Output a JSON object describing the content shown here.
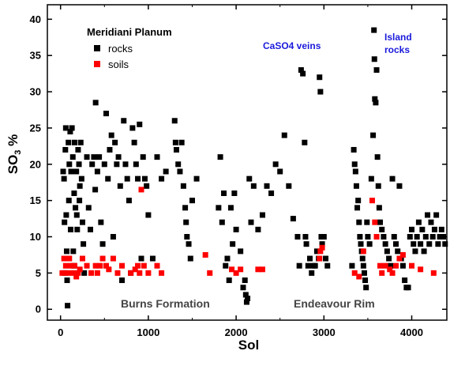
{
  "chart_data": {
    "type": "scatter",
    "title": "",
    "xlabel": "Sol",
    "ylabel_main": "SO",
    "ylabel_sub": "3",
    "ylabel_suffix": " %",
    "xlim": [
      -150,
      4400
    ],
    "ylim": [
      -1.5,
      42
    ],
    "xticks": [
      0,
      1000,
      2000,
      3000,
      4000
    ],
    "yticks": [
      0,
      5,
      10,
      15,
      20,
      25,
      30,
      35,
      40
    ],
    "grid": false,
    "legend": {
      "title": "Meridiani Planum",
      "placement": "top-left",
      "items": [
        {
          "label": "rocks",
          "color": "#000000"
        },
        {
          "label": "soils",
          "color": "#ff0000"
        }
      ]
    },
    "annotations": [
      {
        "text": "CaSO4 veins",
        "color": "#1a1adc"
      },
      {
        "text": "Island",
        "color": "#1a1adc"
      },
      {
        "text": "rocks",
        "color": "#1a1adc"
      },
      {
        "text": "Burns Formation",
        "color": "#444444"
      },
      {
        "text": "Endeavour Rim",
        "color": "#444444"
      }
    ],
    "series": [
      {
        "name": "rocks",
        "color": "#000000",
        "points": [
          [
            30,
            19
          ],
          [
            40,
            18
          ],
          [
            45,
            12
          ],
          [
            50,
            5
          ],
          [
            55,
            22
          ],
          [
            60,
            25
          ],
          [
            65,
            13
          ],
          [
            70,
            8
          ],
          [
            75,
            4
          ],
          [
            80,
            0.5
          ],
          [
            90,
            23
          ],
          [
            95,
            15
          ],
          [
            100,
            20
          ],
          [
            110,
            24.5
          ],
          [
            115,
            11
          ],
          [
            120,
            19
          ],
          [
            130,
            25
          ],
          [
            140,
            21
          ],
          [
            145,
            8
          ],
          [
            150,
            6
          ],
          [
            155,
            16
          ],
          [
            160,
            23
          ],
          [
            170,
            14
          ],
          [
            180,
            19
          ],
          [
            185,
            13
          ],
          [
            190,
            11
          ],
          [
            200,
            22
          ],
          [
            210,
            20
          ],
          [
            215,
            15
          ],
          [
            220,
            17
          ],
          [
            230,
            23
          ],
          [
            240,
            18
          ],
          [
            250,
            12
          ],
          [
            260,
            9
          ],
          [
            270,
            5
          ],
          [
            300,
            21
          ],
          [
            320,
            14
          ],
          [
            340,
            11
          ],
          [
            360,
            20
          ],
          [
            380,
            21
          ],
          [
            395,
            16.5
          ],
          [
            400,
            28.5
          ],
          [
            420,
            19
          ],
          [
            440,
            21
          ],
          [
            460,
            12
          ],
          [
            480,
            9
          ],
          [
            500,
            20
          ],
          [
            520,
            27
          ],
          [
            540,
            18
          ],
          [
            560,
            22
          ],
          [
            580,
            24
          ],
          [
            600,
            10
          ],
          [
            620,
            23
          ],
          [
            640,
            20
          ],
          [
            660,
            21
          ],
          [
            680,
            17
          ],
          [
            700,
            4
          ],
          [
            720,
            26
          ],
          [
            740,
            20
          ],
          [
            760,
            18
          ],
          [
            780,
            15
          ],
          [
            800,
            5
          ],
          [
            820,
            25
          ],
          [
            840,
            23
          ],
          [
            860,
            20
          ],
          [
            880,
            18
          ],
          [
            900,
            25.5
          ],
          [
            920,
            7
          ],
          [
            940,
            21
          ],
          [
            960,
            18
          ],
          [
            980,
            17
          ],
          [
            1000,
            13
          ],
          [
            1050,
            7
          ],
          [
            1100,
            21
          ],
          [
            1150,
            18
          ],
          [
            1200,
            19
          ],
          [
            1300,
            26
          ],
          [
            1310,
            23
          ],
          [
            1320,
            22
          ],
          [
            1340,
            20
          ],
          [
            1360,
            19
          ],
          [
            1380,
            23
          ],
          [
            1400,
            17
          ],
          [
            1420,
            14
          ],
          [
            1430,
            12
          ],
          [
            1440,
            10
          ],
          [
            1460,
            9
          ],
          [
            1480,
            7
          ],
          [
            1500,
            15
          ],
          [
            1550,
            18
          ],
          [
            1800,
            14
          ],
          [
            1820,
            21
          ],
          [
            1840,
            12
          ],
          [
            1860,
            16
          ],
          [
            1880,
            6
          ],
          [
            1900,
            7
          ],
          [
            1920,
            4
          ],
          [
            1940,
            14
          ],
          [
            1960,
            9
          ],
          [
            1980,
            16
          ],
          [
            2000,
            11
          ],
          [
            2050,
            8
          ],
          [
            2080,
            3
          ],
          [
            2100,
            4
          ],
          [
            2110,
            2
          ],
          [
            2120,
            1
          ],
          [
            2130,
            1.5
          ],
          [
            2150,
            18
          ],
          [
            2170,
            12
          ],
          [
            2200,
            17
          ],
          [
            2250,
            11
          ],
          [
            2300,
            13
          ],
          [
            2350,
            17
          ],
          [
            2400,
            16
          ],
          [
            2450,
            20
          ],
          [
            2500,
            19
          ],
          [
            2550,
            24
          ],
          [
            2600,
            17
          ],
          [
            2650,
            12.5
          ],
          [
            2700,
            10
          ],
          [
            2720,
            6
          ],
          [
            2740,
            33
          ],
          [
            2760,
            32.5
          ],
          [
            2780,
            23
          ],
          [
            2790,
            10
          ],
          [
            2800,
            9
          ],
          [
            2820,
            6
          ],
          [
            2840,
            7
          ],
          [
            2860,
            5
          ],
          [
            2880,
            6
          ],
          [
            2900,
            6
          ],
          [
            2920,
            8
          ],
          [
            2940,
            7
          ],
          [
            2950,
            32
          ],
          [
            2960,
            30
          ],
          [
            2970,
            10
          ],
          [
            2980,
            9
          ],
          [
            3000,
            10
          ],
          [
            3020,
            7
          ],
          [
            3040,
            6
          ],
          [
            3320,
            6
          ],
          [
            3340,
            22
          ],
          [
            3350,
            20
          ],
          [
            3360,
            19
          ],
          [
            3370,
            17
          ],
          [
            3380,
            14
          ],
          [
            3390,
            15
          ],
          [
            3400,
            12
          ],
          [
            3410,
            10
          ],
          [
            3420,
            9
          ],
          [
            3430,
            8
          ],
          [
            3440,
            7
          ],
          [
            3450,
            6
          ],
          [
            3460,
            5
          ],
          [
            3470,
            4
          ],
          [
            3480,
            3
          ],
          [
            3490,
            12
          ],
          [
            3500,
            10
          ],
          [
            3520,
            9
          ],
          [
            3540,
            18
          ],
          [
            3560,
            24
          ],
          [
            3570,
            38.5
          ],
          [
            3575,
            34.5
          ],
          [
            3580,
            29
          ],
          [
            3590,
            28.5
          ],
          [
            3600,
            33
          ],
          [
            3610,
            21
          ],
          [
            3620,
            17
          ],
          [
            3630,
            14
          ],
          [
            3640,
            12
          ],
          [
            3660,
            11
          ],
          [
            3680,
            10
          ],
          [
            3700,
            9
          ],
          [
            3720,
            8
          ],
          [
            3740,
            7
          ],
          [
            3760,
            6
          ],
          [
            3780,
            18
          ],
          [
            3800,
            10
          ],
          [
            3820,
            9
          ],
          [
            3840,
            8
          ],
          [
            3860,
            17
          ],
          [
            3880,
            7
          ],
          [
            3900,
            6
          ],
          [
            3920,
            4
          ],
          [
            3940,
            3
          ],
          [
            3960,
            3
          ],
          [
            3980,
            10
          ],
          [
            4000,
            11
          ],
          [
            4020,
            9
          ],
          [
            4040,
            8
          ],
          [
            4060,
            10
          ],
          [
            4080,
            12
          ],
          [
            4100,
            9
          ],
          [
            4120,
            11
          ],
          [
            4140,
            8
          ],
          [
            4160,
            10
          ],
          [
            4180,
            13
          ],
          [
            4200,
            9
          ],
          [
            4220,
            12
          ],
          [
            4240,
            10
          ],
          [
            4260,
            11
          ],
          [
            4280,
            13
          ],
          [
            4300,
            9
          ],
          [
            4320,
            10
          ],
          [
            4340,
            11
          ],
          [
            4360,
            10
          ],
          [
            4380,
            9
          ]
        ]
      },
      {
        "name": "soils",
        "color": "#ff0000",
        "points": [
          [
            20,
            5
          ],
          [
            40,
            7
          ],
          [
            60,
            6
          ],
          [
            80,
            5
          ],
          [
            100,
            7
          ],
          [
            120,
            6
          ],
          [
            140,
            5
          ],
          [
            160,
            6
          ],
          [
            180,
            4.5
          ],
          [
            200,
            5
          ],
          [
            220,
            5.5
          ],
          [
            250,
            7
          ],
          [
            300,
            6
          ],
          [
            350,
            5
          ],
          [
            400,
            6
          ],
          [
            420,
            5
          ],
          [
            450,
            6
          ],
          [
            480,
            7
          ],
          [
            520,
            6
          ],
          [
            550,
            5.5
          ],
          [
            600,
            7
          ],
          [
            650,
            5
          ],
          [
            700,
            6
          ],
          [
            800,
            5
          ],
          [
            850,
            5.5
          ],
          [
            880,
            6
          ],
          [
            900,
            5
          ],
          [
            920,
            16.5
          ],
          [
            950,
            6
          ],
          [
            1000,
            5
          ],
          [
            1100,
            6
          ],
          [
            1150,
            5
          ],
          [
            1650,
            7.5
          ],
          [
            1700,
            5
          ],
          [
            1950,
            5.5
          ],
          [
            2000,
            5
          ],
          [
            2050,
            5.5
          ],
          [
            2250,
            5.5
          ],
          [
            2300,
            5.5
          ],
          [
            2950,
            7
          ],
          [
            2960,
            8
          ],
          [
            2980,
            8.5
          ],
          [
            3350,
            5
          ],
          [
            3400,
            4.5
          ],
          [
            3450,
            8
          ],
          [
            3550,
            15
          ],
          [
            3580,
            12
          ],
          [
            3600,
            10
          ],
          [
            3640,
            6
          ],
          [
            3660,
            5
          ],
          [
            3700,
            6
          ],
          [
            3750,
            5.5
          ],
          [
            3780,
            5
          ],
          [
            3820,
            6
          ],
          [
            3860,
            7
          ],
          [
            3900,
            7.5
          ],
          [
            4000,
            6
          ],
          [
            4100,
            5.5
          ],
          [
            4250,
            5
          ]
        ]
      }
    ]
  }
}
